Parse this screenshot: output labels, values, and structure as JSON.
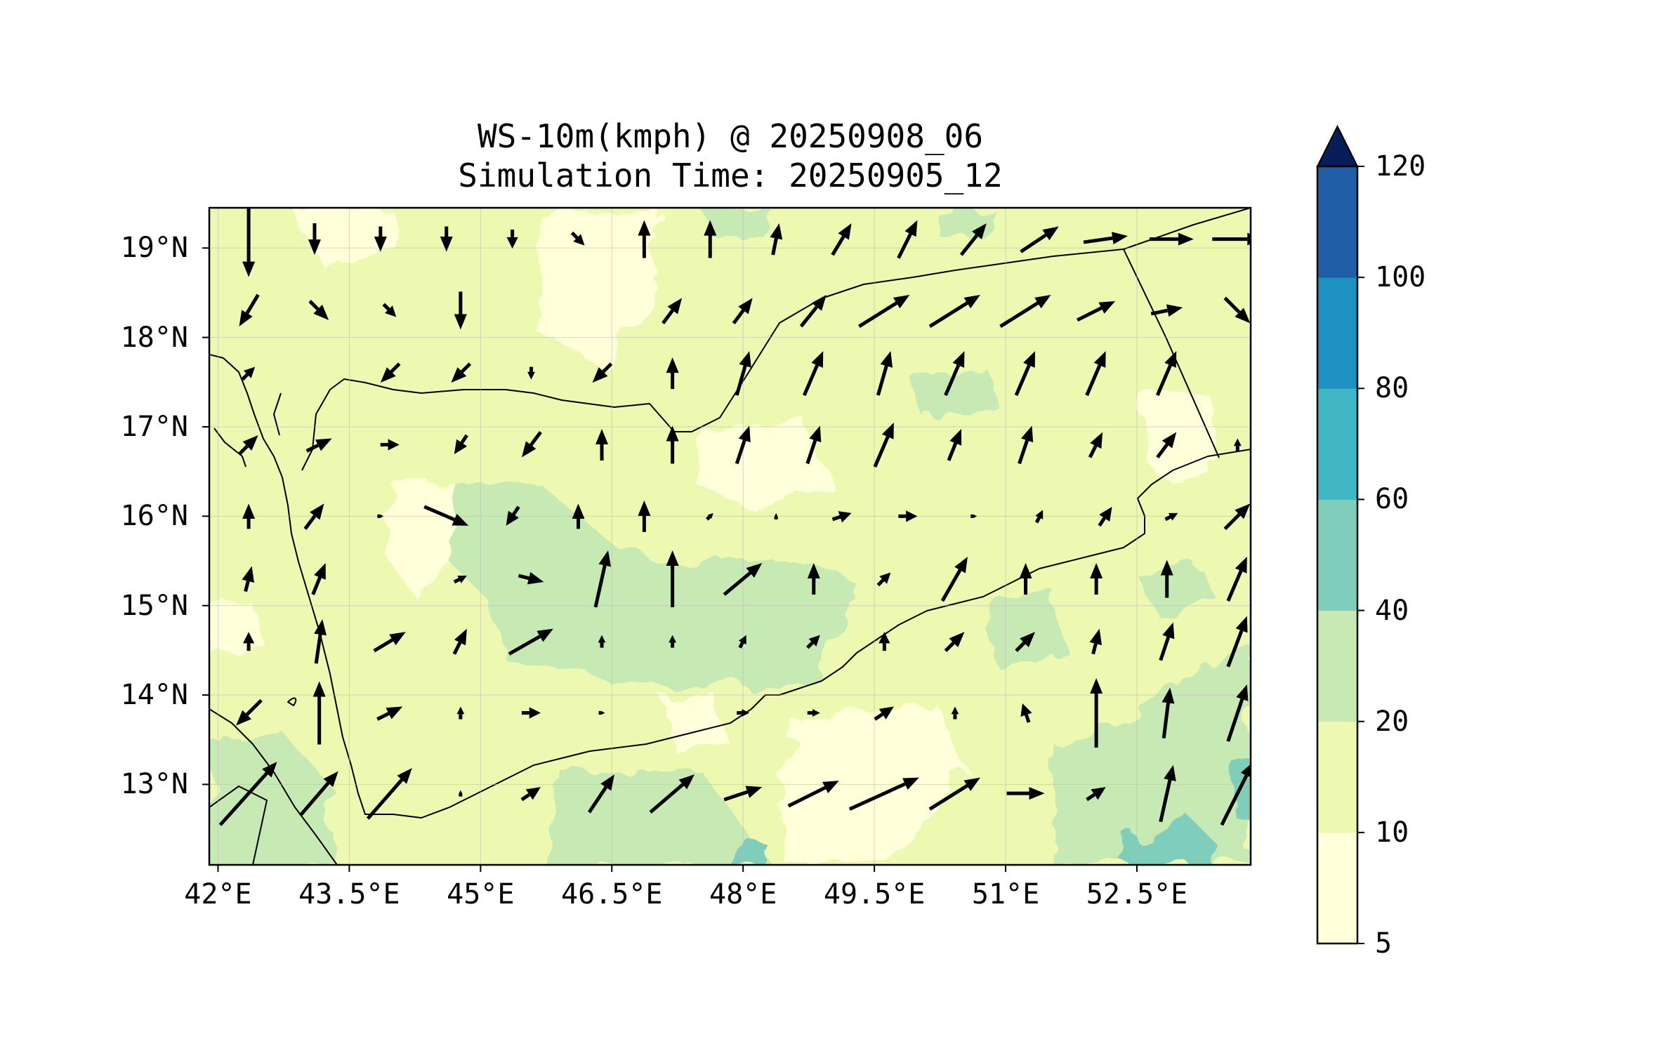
{
  "title": {
    "line1": "WS-10m(kmph) @ 20250908_06",
    "line2": "Simulation Time: 20250905_12"
  },
  "chart_data": {
    "type": "map",
    "variable": "WS-10m(kmph)",
    "extent": {
      "lon": [
        41.9,
        53.8
      ],
      "lat": [
        12.1,
        19.45
      ]
    },
    "lat_ticks": [
      {
        "value": 19,
        "label": "19°N"
      },
      {
        "value": 18,
        "label": "18°N"
      },
      {
        "value": 17,
        "label": "17°N"
      },
      {
        "value": 16,
        "label": "16°N"
      },
      {
        "value": 15,
        "label": "15°N"
      },
      {
        "value": 14,
        "label": "14°N"
      },
      {
        "value": 13,
        "label": "13°N"
      }
    ],
    "lon_ticks": [
      {
        "value": 42,
        "label": "42°E"
      },
      {
        "value": 43.5,
        "label": "43.5°E"
      },
      {
        "value": 45,
        "label": "45°E"
      },
      {
        "value": 46.5,
        "label": "46.5°E"
      },
      {
        "value": 48,
        "label": "48°E"
      },
      {
        "value": 49.5,
        "label": "49.5°E"
      },
      {
        "value": 51,
        "label": "51°E"
      },
      {
        "value": 52.5,
        "label": "52.5°E"
      }
    ],
    "colorbar": {
      "levels": [
        5,
        10,
        20,
        40,
        60,
        80,
        100,
        120
      ],
      "labels": [
        "5",
        "10",
        "20",
        "40",
        "60",
        "80",
        "100",
        "120"
      ],
      "colors": [
        "#ffffd9",
        "#edf8b1",
        "#c7e9b4",
        "#7fcdbb",
        "#41b6c4",
        "#1d91c0",
        "#225ea8",
        "#253494"
      ],
      "extend_color": "#081d58"
    },
    "grid": true,
    "vector_rows": [
      {
        "lat": 19.1,
        "u": [
          0,
          0,
          0,
          0,
          0,
          2,
          0,
          0,
          1,
          3,
          3,
          4,
          6,
          7,
          7,
          8
        ],
        "v": [
          -12,
          -5,
          -4,
          -4,
          -3,
          -2,
          6,
          6,
          5,
          5,
          6,
          5,
          4,
          1,
          0,
          0
        ]
      },
      {
        "lat": 18.3,
        "u": [
          -3,
          3,
          2,
          0,
          0,
          0,
          3,
          3,
          4,
          8,
          8,
          8,
          6,
          5,
          4
        ],
        "v": [
          -5,
          -3,
          -2,
          -6,
          0,
          0,
          4,
          4,
          5,
          5,
          5,
          5,
          3,
          1,
          -4
        ]
      },
      {
        "lat": 17.6,
        "u": [
          2,
          0,
          -3,
          -3,
          0,
          -3,
          0,
          2,
          3,
          2,
          3,
          3,
          3,
          3,
          0
        ],
        "v": [
          2,
          0,
          -3,
          -3,
          -2,
          -3,
          5,
          7,
          7,
          7,
          7,
          7,
          7,
          7,
          0
        ]
      },
      {
        "lat": 16.8,
        "u": [
          3,
          4,
          3,
          -2,
          -3,
          0,
          0,
          2,
          2,
          3,
          2,
          2,
          2,
          3,
          0
        ],
        "v": [
          3,
          2,
          0,
          -3,
          -4,
          5,
          6,
          6,
          6,
          7,
          5,
          6,
          4,
          4,
          2
        ]
      },
      {
        "lat": 16.0,
        "u": [
          0,
          3,
          1,
          7,
          -2,
          0,
          0,
          1,
          0,
          3,
          3,
          1,
          1,
          2,
          2,
          4
        ],
        "v": [
          4,
          4,
          0,
          -3,
          -3,
          4,
          5,
          1,
          1,
          1,
          0,
          0,
          2,
          3,
          1,
          4
        ]
      },
      {
        "lat": 15.3,
        "u": [
          1,
          2,
          0,
          2,
          4,
          2,
          0,
          6,
          0,
          2,
          4,
          0,
          0,
          0,
          3
        ],
        "v": [
          4,
          5,
          0,
          1,
          -1,
          9,
          9,
          5,
          5,
          2,
          7,
          5,
          5,
          6,
          7
        ]
      },
      {
        "lat": 14.6,
        "u": [
          0,
          1,
          5,
          2,
          7,
          0,
          0,
          1,
          2,
          0,
          3,
          3,
          1,
          2,
          3
        ],
        "v": [
          3,
          7,
          3,
          4,
          4,
          2,
          2,
          2,
          2,
          3,
          3,
          3,
          4,
          6,
          8
        ]
      },
      {
        "lat": 13.8,
        "u": [
          -4,
          0,
          4,
          0,
          3,
          1,
          0,
          2,
          2,
          3,
          0,
          -1,
          0,
          1,
          3
        ],
        "v": [
          -4,
          10,
          2,
          2,
          0,
          0,
          0,
          0,
          0,
          2,
          2,
          3,
          11,
          8,
          9
        ]
      },
      {
        "lat": 12.9,
        "u": [
          9,
          6,
          7,
          0,
          3,
          4,
          7,
          6,
          8,
          11,
          8,
          6,
          3,
          2,
          5
        ],
        "v": [
          10,
          7,
          8,
          1,
          2,
          6,
          6,
          2,
          4,
          5,
          5,
          0,
          2,
          9,
          10
        ]
      }
    ]
  }
}
